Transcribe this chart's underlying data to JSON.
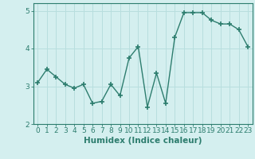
{
  "x": [
    0,
    1,
    2,
    3,
    4,
    5,
    6,
    7,
    8,
    9,
    10,
    11,
    12,
    13,
    14,
    15,
    16,
    17,
    18,
    19,
    20,
    21,
    22,
    23
  ],
  "y": [
    3.1,
    3.45,
    3.25,
    3.05,
    2.95,
    3.05,
    2.55,
    2.6,
    3.05,
    2.75,
    3.75,
    4.05,
    2.45,
    3.35,
    2.55,
    4.3,
    4.95,
    4.95,
    4.95,
    4.75,
    4.65,
    4.65,
    4.5,
    4.05
  ],
  "line_color": "#2d7d6e",
  "marker": "+",
  "marker_size": 4,
  "bg_color": "#d4efef",
  "grid_color": "#b8dede",
  "xlabel": "Humidex (Indice chaleur)",
  "ylim": [
    2.0,
    5.2
  ],
  "xlim": [
    -0.5,
    23.5
  ],
  "yticks": [
    2,
    3,
    4,
    5
  ],
  "xticks": [
    0,
    1,
    2,
    3,
    4,
    5,
    6,
    7,
    8,
    9,
    10,
    11,
    12,
    13,
    14,
    15,
    16,
    17,
    18,
    19,
    20,
    21,
    22,
    23
  ],
  "tick_label_fontsize": 6.5,
  "xlabel_fontsize": 7.5,
  "line_width": 1.0
}
